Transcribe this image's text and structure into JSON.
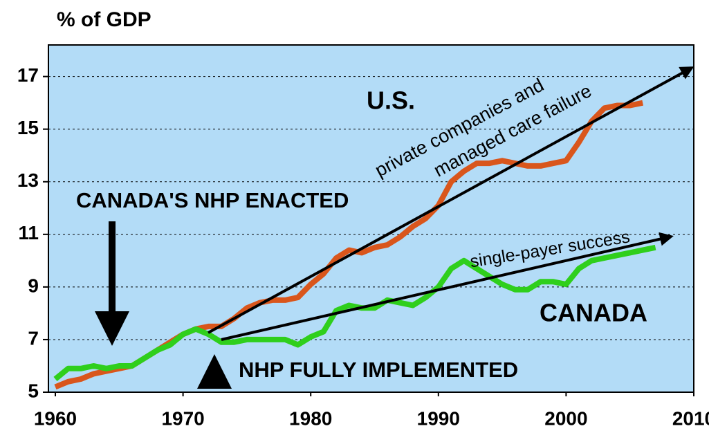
{
  "chart_data": {
    "type": "line",
    "y_label": "% of GDP",
    "x": [
      1960,
      1961,
      1962,
      1963,
      1964,
      1965,
      1966,
      1967,
      1968,
      1969,
      1970,
      1971,
      1972,
      1973,
      1974,
      1975,
      1976,
      1977,
      1978,
      1979,
      1980,
      1981,
      1982,
      1983,
      1984,
      1985,
      1986,
      1987,
      1988,
      1989,
      1990,
      1991,
      1992,
      1993,
      1994,
      1995,
      1996,
      1997,
      1998,
      1999,
      2000,
      2001,
      2002,
      2003,
      2004,
      2005,
      2006,
      2007
    ],
    "series": [
      {
        "name": "U.S.",
        "color": "#d9561c",
        "values": [
          5.2,
          5.4,
          5.5,
          5.7,
          5.8,
          5.9,
          6.0,
          6.3,
          6.6,
          6.9,
          7.2,
          7.4,
          7.5,
          7.5,
          7.8,
          8.2,
          8.4,
          8.5,
          8.5,
          8.6,
          9.1,
          9.5,
          10.1,
          10.4,
          10.3,
          10.5,
          10.6,
          10.9,
          11.3,
          11.6,
          12.1,
          13.0,
          13.4,
          13.7,
          13.7,
          13.8,
          13.7,
          13.6,
          13.6,
          13.7,
          13.8,
          14.5,
          15.3,
          15.8,
          15.9,
          15.9,
          16.0,
          null
        ]
      },
      {
        "name": "CANADA",
        "color": "#2fcf1c",
        "values": [
          5.5,
          5.9,
          5.9,
          6.0,
          5.9,
          6.0,
          6.0,
          6.3,
          6.6,
          6.8,
          7.2,
          7.4,
          7.2,
          6.9,
          6.9,
          7.0,
          7.0,
          7.0,
          7.0,
          6.8,
          7.1,
          7.3,
          8.1,
          8.3,
          8.2,
          8.2,
          8.5,
          8.4,
          8.3,
          8.6,
          9.0,
          9.7,
          10.0,
          9.7,
          9.4,
          9.1,
          8.9,
          8.9,
          9.2,
          9.2,
          9.1,
          9.7,
          10.0,
          10.1,
          10.2,
          10.3,
          10.4,
          10.5
        ]
      }
    ],
    "annotations": [
      "private companies and",
      "managed care failure",
      "CANADA'S NHP ENACTED",
      "single-payer success",
      "NHP FULLY IMPLEMENTED"
    ],
    "xlim": [
      1960,
      2010
    ],
    "xticks": [
      1960,
      1970,
      1980,
      1990,
      2000,
      2010
    ],
    "ylim": [
      5,
      18.2
    ],
    "yticks": [
      5,
      7,
      9,
      11,
      13,
      15,
      17
    ],
    "grid": true,
    "background": "#b3dcf7"
  }
}
